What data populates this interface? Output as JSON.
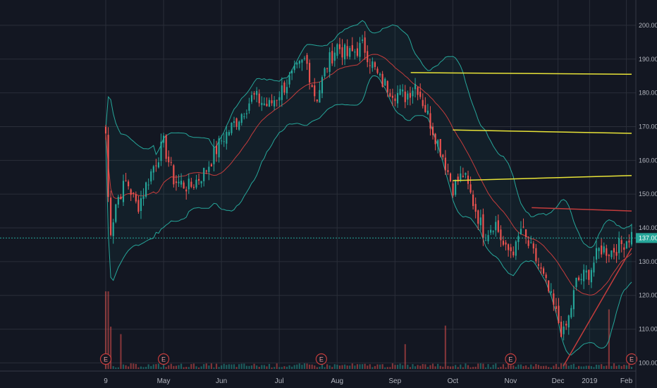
{
  "chart_data": {
    "type": "candlestick",
    "ylim": [
      98,
      205
    ],
    "y_ticks": [
      100,
      110,
      120,
      130,
      140,
      150,
      160,
      170,
      180,
      190,
      200
    ],
    "y_tick_labels": [
      "100.00",
      "110.00",
      "120.00",
      "130.00",
      "140.00",
      "150.00",
      "160.00",
      "170.00",
      "180.00",
      "190.00",
      "200.00"
    ],
    "x_labels": [
      "9",
      "May",
      "Jun",
      "Jul",
      "Aug",
      "Sep",
      "Oct",
      "Nov",
      "Dec",
      "2019",
      "Feb"
    ],
    "x_label_pos": [
      0.0,
      0.11,
      0.22,
      0.33,
      0.44,
      0.55,
      0.66,
      0.77,
      0.86,
      0.92,
      0.99
    ],
    "last_price": 137.0,
    "last_price_label": "137.00",
    "path_anchors": [
      [
        0.0,
        168
      ],
      [
        0.005,
        148
      ],
      [
        0.01,
        139
      ],
      [
        0.02,
        148
      ],
      [
        0.04,
        154
      ],
      [
        0.06,
        146
      ],
      [
        0.09,
        158
      ],
      [
        0.11,
        165
      ],
      [
        0.13,
        154
      ],
      [
        0.16,
        152
      ],
      [
        0.19,
        157
      ],
      [
        0.22,
        166
      ],
      [
        0.25,
        172
      ],
      [
        0.28,
        179
      ],
      [
        0.31,
        176
      ],
      [
        0.33,
        180
      ],
      [
        0.36,
        186
      ],
      [
        0.38,
        190
      ],
      [
        0.4,
        178
      ],
      [
        0.42,
        188
      ],
      [
        0.44,
        194
      ],
      [
        0.46,
        191
      ],
      [
        0.49,
        194
      ],
      [
        0.52,
        184
      ],
      [
        0.55,
        180
      ],
      [
        0.57,
        179
      ],
      [
        0.59,
        183
      ],
      [
        0.62,
        170
      ],
      [
        0.64,
        162
      ],
      [
        0.66,
        152
      ],
      [
        0.68,
        156
      ],
      [
        0.7,
        147
      ],
      [
        0.72,
        138
      ],
      [
        0.74,
        142
      ],
      [
        0.76,
        133
      ],
      [
        0.78,
        134
      ],
      [
        0.79,
        140
      ],
      [
        0.8,
        136
      ],
      [
        0.82,
        130
      ],
      [
        0.84,
        122
      ],
      [
        0.855,
        115
      ],
      [
        0.87,
        108
      ],
      [
        0.88,
        113
      ],
      [
        0.895,
        124
      ],
      [
        0.92,
        127
      ],
      [
        0.94,
        134
      ],
      [
        0.96,
        133
      ],
      [
        0.98,
        135
      ],
      [
        1.0,
        138
      ]
    ],
    "horizontal_lines": [
      {
        "from": [
          0.58,
          186.0
        ],
        "to": [
          1.0,
          185.5
        ],
        "color": "#e8e337"
      },
      {
        "from": [
          0.66,
          169.0
        ],
        "to": [
          1.0,
          168.0
        ],
        "color": "#e8e337"
      },
      {
        "from": [
          0.66,
          154.0
        ],
        "to": [
          1.0,
          155.5
        ],
        "color": "#e8e337"
      },
      {
        "from": [
          0.81,
          146.0
        ],
        "to": [
          1.0,
          145.0
        ],
        "color": "#c43c3c"
      }
    ],
    "trend_line": {
      "from": [
        0.87,
        99.0
      ],
      "to": [
        1.0,
        134.0
      ],
      "color": "#c43c3c"
    },
    "earnings_markers": {
      "label": "E",
      "positions": [
        0.0,
        0.11,
        0.41,
        0.77,
        1.0
      ]
    },
    "colors": {
      "background": "#131722",
      "up": "#26a69a",
      "down": "#ef5350",
      "bollinger": "#26a69a",
      "basis": "#c43c3c",
      "grid": "#2a2e39",
      "price_line": "#26a69a"
    }
  }
}
